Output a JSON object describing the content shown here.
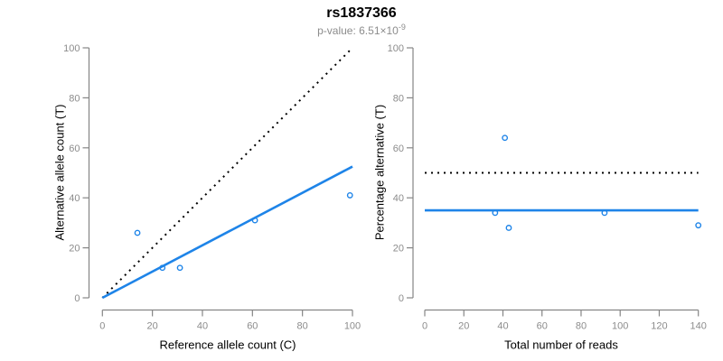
{
  "header": {
    "title": "rs1837366",
    "subtitle_text": "p-value: 6.51×10",
    "subtitle_exponent": "-9"
  },
  "colors": {
    "accent_blue": "#1E84E8",
    "dotted_black": "#000000",
    "axis_gray": "#858585",
    "tick_label_gray": "#8c8c8c",
    "title_black": "#000000",
    "subtitle_gray": "#8c8c8c"
  },
  "chart_data": [
    {
      "type": "scatter",
      "title": "",
      "xlabel": "Reference allele count (C)",
      "ylabel": "Alternative allele count (T)",
      "xlim": [
        0,
        100
      ],
      "ylim": [
        0,
        100
      ],
      "xticks": [
        0,
        20,
        40,
        60,
        80,
        100
      ],
      "yticks": [
        0,
        20,
        40,
        60,
        80,
        100
      ],
      "grid": false,
      "legend_position": "none",
      "points": [
        [
          14,
          26
        ],
        [
          24,
          12
        ],
        [
          31,
          12
        ],
        [
          61,
          31
        ],
        [
          99,
          41
        ]
      ],
      "point_style": {
        "shape": "open-circle",
        "color": "#1E84E8"
      },
      "lines": [
        {
          "name": "identity-line",
          "style": "dotted",
          "color": "#000000",
          "from": [
            0,
            0
          ],
          "to": [
            100,
            100
          ]
        },
        {
          "name": "regression-line",
          "style": "solid",
          "color": "#1E84E8",
          "from": [
            0,
            0
          ],
          "to": [
            100,
            52.5
          ]
        }
      ]
    },
    {
      "type": "scatter",
      "title": "",
      "xlabel": "Total number of reads",
      "ylabel": "Percentage alternative (T)",
      "xlim": [
        0,
        140
      ],
      "ylim": [
        0,
        100
      ],
      "xticks": [
        0,
        20,
        40,
        60,
        80,
        100,
        120,
        140
      ],
      "yticks": [
        0,
        20,
        40,
        60,
        80,
        100
      ],
      "grid": false,
      "legend_position": "none",
      "points": [
        [
          36,
          34
        ],
        [
          41,
          64
        ],
        [
          43,
          28
        ],
        [
          92,
          34
        ],
        [
          140,
          29
        ]
      ],
      "point_style": {
        "shape": "open-circle",
        "color": "#1E84E8"
      },
      "lines": [
        {
          "name": "fifty-percent-line",
          "style": "dotted",
          "color": "#000000",
          "from": [
            0,
            50
          ],
          "to": [
            140,
            50
          ]
        },
        {
          "name": "mean-percentage-line",
          "style": "solid",
          "color": "#1E84E8",
          "from": [
            0,
            35
          ],
          "to": [
            140,
            35
          ]
        }
      ]
    }
  ]
}
